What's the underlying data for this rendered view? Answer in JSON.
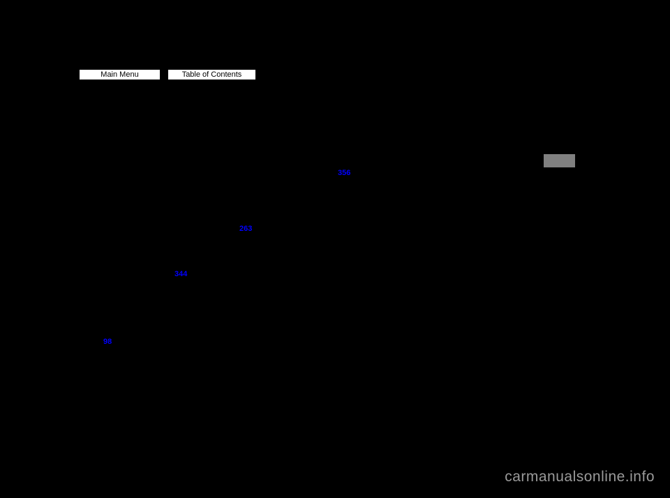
{
  "nav": {
    "main_menu_label": "Main Menu",
    "toc_label": "Table of Contents"
  },
  "links": {
    "link1_text": "356",
    "link2_text": "263",
    "link3_text": "344",
    "link4_text": "98"
  },
  "watermark": {
    "text": "carmanualsonline.info"
  },
  "colors": {
    "background": "#000000",
    "button_bg": "#ffffff",
    "button_border": "#000000",
    "link_color": "#0000ff",
    "gray_box": "#808080",
    "watermark_color": "#9a9a9a"
  }
}
